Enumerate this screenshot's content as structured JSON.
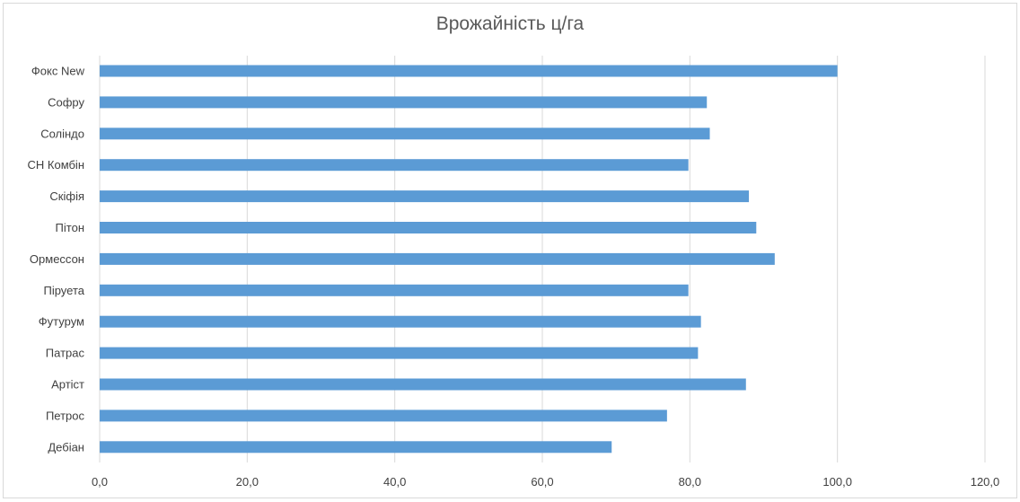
{
  "chart_data": {
    "type": "bar",
    "orientation": "horizontal",
    "title": "Врожайність ц/га",
    "categories": [
      "Фокс New",
      "Софру",
      "Соліндо",
      "СН Комбін",
      "Скіфія",
      "Пітон",
      "Ормессон",
      "Піруета",
      "Футурум",
      "Патрас",
      "Артіст",
      "Петрос",
      "Дебіан"
    ],
    "values": [
      100.0,
      82.3,
      82.7,
      79.8,
      88.0,
      89.0,
      91.5,
      79.8,
      81.5,
      81.1,
      87.6,
      76.9,
      69.4
    ],
    "xlim": [
      0,
      120
    ],
    "xticks": [
      "0,0",
      "20,0",
      "40,0",
      "60,0",
      "80,0",
      "100,0",
      "120,0"
    ],
    "grid": true,
    "legend": "none",
    "bar_color": "#5b9bd5",
    "grid_color": "#d9d9d9"
  }
}
